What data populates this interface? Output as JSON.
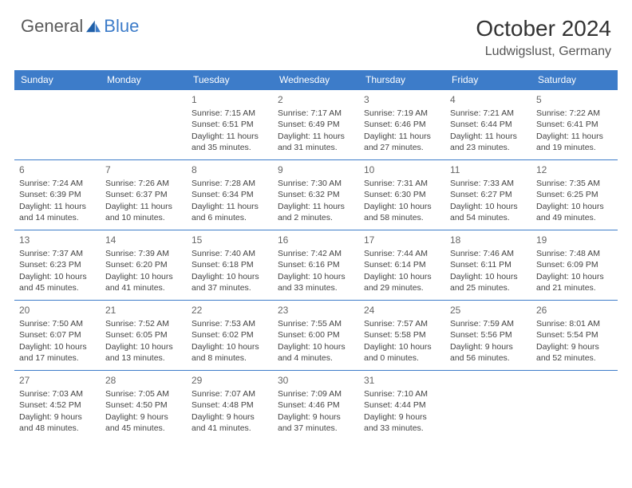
{
  "brand": {
    "part1": "General",
    "part2": "Blue"
  },
  "title": "October 2024",
  "location": "Ludwigslust, Germany",
  "colors": {
    "header_bg": "#3d7cc9",
    "header_text": "#ffffff",
    "border": "#3d7cc9",
    "body_text": "#444444",
    "daynum": "#666666",
    "brand_gray": "#5a5a5a",
    "brand_blue": "#3d7cc9"
  },
  "weekdays": [
    "Sunday",
    "Monday",
    "Tuesday",
    "Wednesday",
    "Thursday",
    "Friday",
    "Saturday"
  ],
  "weeks": [
    [
      null,
      null,
      {
        "n": "1",
        "sr": "Sunrise: 7:15 AM",
        "ss": "Sunset: 6:51 PM",
        "d1": "Daylight: 11 hours",
        "d2": "and 35 minutes."
      },
      {
        "n": "2",
        "sr": "Sunrise: 7:17 AM",
        "ss": "Sunset: 6:49 PM",
        "d1": "Daylight: 11 hours",
        "d2": "and 31 minutes."
      },
      {
        "n": "3",
        "sr": "Sunrise: 7:19 AM",
        "ss": "Sunset: 6:46 PM",
        "d1": "Daylight: 11 hours",
        "d2": "and 27 minutes."
      },
      {
        "n": "4",
        "sr": "Sunrise: 7:21 AM",
        "ss": "Sunset: 6:44 PM",
        "d1": "Daylight: 11 hours",
        "d2": "and 23 minutes."
      },
      {
        "n": "5",
        "sr": "Sunrise: 7:22 AM",
        "ss": "Sunset: 6:41 PM",
        "d1": "Daylight: 11 hours",
        "d2": "and 19 minutes."
      }
    ],
    [
      {
        "n": "6",
        "sr": "Sunrise: 7:24 AM",
        "ss": "Sunset: 6:39 PM",
        "d1": "Daylight: 11 hours",
        "d2": "and 14 minutes."
      },
      {
        "n": "7",
        "sr": "Sunrise: 7:26 AM",
        "ss": "Sunset: 6:37 PM",
        "d1": "Daylight: 11 hours",
        "d2": "and 10 minutes."
      },
      {
        "n": "8",
        "sr": "Sunrise: 7:28 AM",
        "ss": "Sunset: 6:34 PM",
        "d1": "Daylight: 11 hours",
        "d2": "and 6 minutes."
      },
      {
        "n": "9",
        "sr": "Sunrise: 7:30 AM",
        "ss": "Sunset: 6:32 PM",
        "d1": "Daylight: 11 hours",
        "d2": "and 2 minutes."
      },
      {
        "n": "10",
        "sr": "Sunrise: 7:31 AM",
        "ss": "Sunset: 6:30 PM",
        "d1": "Daylight: 10 hours",
        "d2": "and 58 minutes."
      },
      {
        "n": "11",
        "sr": "Sunrise: 7:33 AM",
        "ss": "Sunset: 6:27 PM",
        "d1": "Daylight: 10 hours",
        "d2": "and 54 minutes."
      },
      {
        "n": "12",
        "sr": "Sunrise: 7:35 AM",
        "ss": "Sunset: 6:25 PM",
        "d1": "Daylight: 10 hours",
        "d2": "and 49 minutes."
      }
    ],
    [
      {
        "n": "13",
        "sr": "Sunrise: 7:37 AM",
        "ss": "Sunset: 6:23 PM",
        "d1": "Daylight: 10 hours",
        "d2": "and 45 minutes."
      },
      {
        "n": "14",
        "sr": "Sunrise: 7:39 AM",
        "ss": "Sunset: 6:20 PM",
        "d1": "Daylight: 10 hours",
        "d2": "and 41 minutes."
      },
      {
        "n": "15",
        "sr": "Sunrise: 7:40 AM",
        "ss": "Sunset: 6:18 PM",
        "d1": "Daylight: 10 hours",
        "d2": "and 37 minutes."
      },
      {
        "n": "16",
        "sr": "Sunrise: 7:42 AM",
        "ss": "Sunset: 6:16 PM",
        "d1": "Daylight: 10 hours",
        "d2": "and 33 minutes."
      },
      {
        "n": "17",
        "sr": "Sunrise: 7:44 AM",
        "ss": "Sunset: 6:14 PM",
        "d1": "Daylight: 10 hours",
        "d2": "and 29 minutes."
      },
      {
        "n": "18",
        "sr": "Sunrise: 7:46 AM",
        "ss": "Sunset: 6:11 PM",
        "d1": "Daylight: 10 hours",
        "d2": "and 25 minutes."
      },
      {
        "n": "19",
        "sr": "Sunrise: 7:48 AM",
        "ss": "Sunset: 6:09 PM",
        "d1": "Daylight: 10 hours",
        "d2": "and 21 minutes."
      }
    ],
    [
      {
        "n": "20",
        "sr": "Sunrise: 7:50 AM",
        "ss": "Sunset: 6:07 PM",
        "d1": "Daylight: 10 hours",
        "d2": "and 17 minutes."
      },
      {
        "n": "21",
        "sr": "Sunrise: 7:52 AM",
        "ss": "Sunset: 6:05 PM",
        "d1": "Daylight: 10 hours",
        "d2": "and 13 minutes."
      },
      {
        "n": "22",
        "sr": "Sunrise: 7:53 AM",
        "ss": "Sunset: 6:02 PM",
        "d1": "Daylight: 10 hours",
        "d2": "and 8 minutes."
      },
      {
        "n": "23",
        "sr": "Sunrise: 7:55 AM",
        "ss": "Sunset: 6:00 PM",
        "d1": "Daylight: 10 hours",
        "d2": "and 4 minutes."
      },
      {
        "n": "24",
        "sr": "Sunrise: 7:57 AM",
        "ss": "Sunset: 5:58 PM",
        "d1": "Daylight: 10 hours",
        "d2": "and 0 minutes."
      },
      {
        "n": "25",
        "sr": "Sunrise: 7:59 AM",
        "ss": "Sunset: 5:56 PM",
        "d1": "Daylight: 9 hours",
        "d2": "and 56 minutes."
      },
      {
        "n": "26",
        "sr": "Sunrise: 8:01 AM",
        "ss": "Sunset: 5:54 PM",
        "d1": "Daylight: 9 hours",
        "d2": "and 52 minutes."
      }
    ],
    [
      {
        "n": "27",
        "sr": "Sunrise: 7:03 AM",
        "ss": "Sunset: 4:52 PM",
        "d1": "Daylight: 9 hours",
        "d2": "and 48 minutes."
      },
      {
        "n": "28",
        "sr": "Sunrise: 7:05 AM",
        "ss": "Sunset: 4:50 PM",
        "d1": "Daylight: 9 hours",
        "d2": "and 45 minutes."
      },
      {
        "n": "29",
        "sr": "Sunrise: 7:07 AM",
        "ss": "Sunset: 4:48 PM",
        "d1": "Daylight: 9 hours",
        "d2": "and 41 minutes."
      },
      {
        "n": "30",
        "sr": "Sunrise: 7:09 AM",
        "ss": "Sunset: 4:46 PM",
        "d1": "Daylight: 9 hours",
        "d2": "and 37 minutes."
      },
      {
        "n": "31",
        "sr": "Sunrise: 7:10 AM",
        "ss": "Sunset: 4:44 PM",
        "d1": "Daylight: 9 hours",
        "d2": "and 33 minutes."
      },
      null,
      null
    ]
  ]
}
